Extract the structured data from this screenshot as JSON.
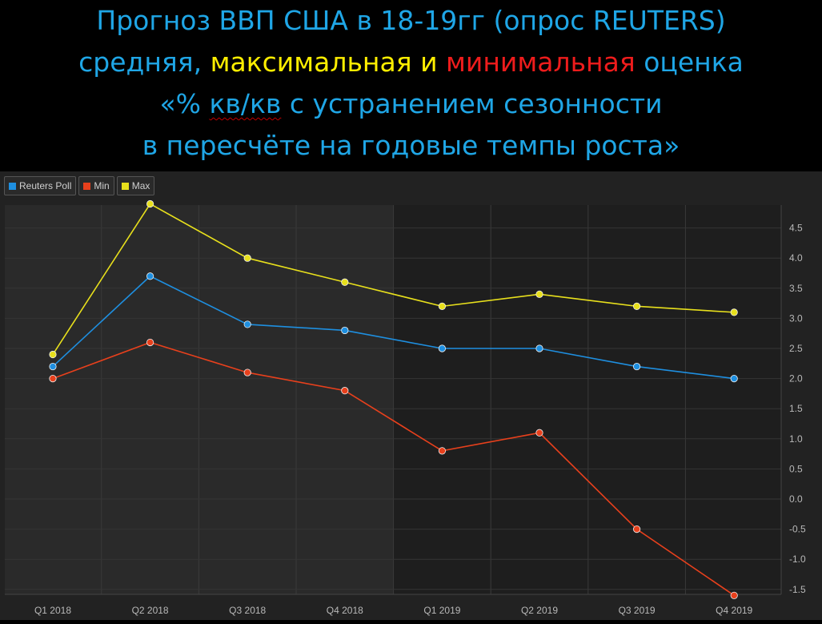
{
  "title": {
    "line1": "Прогноз ВВП США в 18-19гг (опрос REUTERS)",
    "line2_parts": [
      "средняя,",
      "максимальная",
      "и",
      "минимальная",
      "оценка"
    ],
    "line3_parts": [
      "«%",
      "кв/кв",
      "с устранением сезонности"
    ],
    "line4": "в пересчёте на годовые темпы роста»"
  },
  "colors": {
    "title_blue": "#1fa6e6",
    "yellow": "#ffee00",
    "red": "#ee1c1c",
    "reuters": "#1e8fe0",
    "min": "#e8401c",
    "max": "#e8e01c"
  },
  "chart_data": {
    "type": "line",
    "categories": [
      "Q1 2018",
      "Q2 2018",
      "Q3 2018",
      "Q4 2018",
      "Q1 2019",
      "Q2 2019",
      "Q3 2019",
      "Q4 2019"
    ],
    "series": [
      {
        "name": "Reuters Poll",
        "values": [
          2.2,
          3.7,
          2.9,
          2.8,
          2.5,
          2.5,
          2.2,
          2.0
        ]
      },
      {
        "name": "Min",
        "values": [
          2.0,
          2.6,
          2.1,
          1.8,
          0.8,
          1.1,
          -0.5,
          -1.6
        ]
      },
      {
        "name": "Max",
        "values": [
          2.4,
          4.9,
          4.0,
          3.6,
          3.2,
          3.4,
          3.2,
          3.1
        ]
      }
    ],
    "y_ticks": [
      "4.5",
      "4.0",
      "3.5",
      "3.0",
      "2.5",
      "2.0",
      "1.5",
      "1.0",
      "0.5",
      "0.0",
      "-0.5",
      "-1.0",
      "-1.5"
    ],
    "ylim": [
      -1.75,
      5.0
    ],
    "y_axis_side": "right",
    "grid": true,
    "legend_position": "top-left"
  }
}
